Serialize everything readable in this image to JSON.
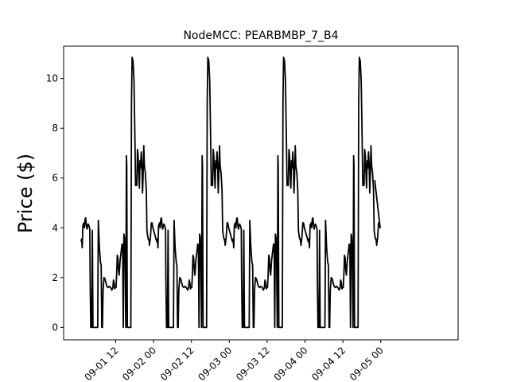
{
  "chart_data": {
    "type": "line",
    "title": "NodeMCC: PEARBMBP_7_B4",
    "xlabel": "",
    "ylabel": "Price ($)",
    "ylim": [
      -0.5,
      11.3
    ],
    "xlim": [
      -4.5,
      120.5
    ],
    "y_ticks": [
      0,
      2,
      4,
      6,
      8,
      10
    ],
    "x_ticks": [
      {
        "hour": 12,
        "label": "09-01 12"
      },
      {
        "hour": 24,
        "label": "09-02 00"
      },
      {
        "hour": 36,
        "label": "09-02 12"
      },
      {
        "hour": 48,
        "label": "09-03 00"
      },
      {
        "hour": 60,
        "label": "09-03 12"
      },
      {
        "hour": 72,
        "label": "09-04 00"
      },
      {
        "hour": 84,
        "label": "09-04 12"
      },
      {
        "hour": 96,
        "label": "09-05 00"
      }
    ],
    "line_color": "#000000",
    "series": [
      {
        "cycle_hours": 24,
        "start_hour": 1,
        "cycle": [
          [
            0.0,
            3.45
          ],
          [
            0.2,
            3.55
          ],
          [
            0.4,
            3.2
          ],
          [
            0.6,
            4.1
          ],
          [
            0.9,
            4.2
          ],
          [
            1.1,
            4.0
          ],
          [
            1.3,
            4.35
          ],
          [
            1.5,
            4.4
          ],
          [
            1.7,
            4.1
          ],
          [
            1.9,
            3.95
          ],
          [
            2.1,
            4.1
          ],
          [
            2.3,
            4.15
          ],
          [
            2.6,
            4.05
          ],
          [
            2.8,
            3.95
          ],
          [
            2.9,
            2.0
          ],
          [
            3.1,
            0.0
          ],
          [
            3.4,
            0.0
          ],
          [
            3.6,
            3.9
          ],
          [
            3.8,
            0.0
          ],
          [
            4.5,
            0.0
          ],
          [
            5.0,
            0.0
          ],
          [
            5.3,
            0.0
          ],
          [
            5.5,
            4.3
          ],
          [
            5.8,
            3.3
          ],
          [
            6.0,
            2.9
          ],
          [
            6.2,
            2.6
          ],
          [
            6.4,
            2.5
          ],
          [
            6.6,
            0.0
          ],
          [
            6.8,
            0.0
          ],
          [
            7.0,
            1.5
          ],
          [
            7.3,
            2.0
          ],
          [
            7.6,
            1.95
          ],
          [
            7.9,
            1.8
          ],
          [
            8.2,
            1.65
          ],
          [
            8.6,
            1.6
          ],
          [
            9.0,
            1.65
          ],
          [
            9.4,
            1.6
          ],
          [
            9.8,
            1.5
          ],
          [
            10.1,
            1.6
          ],
          [
            10.3,
            1.9
          ],
          [
            10.5,
            1.8
          ],
          [
            10.7,
            1.55
          ],
          [
            10.9,
            1.6
          ],
          [
            11.1,
            1.6
          ],
          [
            11.3,
            2.1
          ],
          [
            11.5,
            2.9
          ],
          [
            11.7,
            2.8
          ],
          [
            11.9,
            2.3
          ],
          [
            12.1,
            2.1
          ],
          [
            12.4,
            2.7
          ],
          [
            12.7,
            3.0
          ],
          [
            13.0,
            3.35
          ],
          [
            13.2,
            3.3
          ],
          [
            13.4,
            0.0
          ],
          [
            13.6,
            3.75
          ],
          [
            13.8,
            3.6
          ],
          [
            14.0,
            2.5
          ],
          [
            14.2,
            0.0
          ],
          [
            14.4,
            6.9
          ],
          [
            14.5,
            6.5
          ],
          [
            14.7,
            0.0
          ],
          [
            15.6,
            0.0
          ],
          [
            15.8,
            0.0
          ],
          [
            16.0,
            9.0
          ],
          [
            16.2,
            10.85
          ],
          [
            16.5,
            10.7
          ],
          [
            16.8,
            9.9
          ],
          [
            17.1,
            7.5
          ],
          [
            17.3,
            5.7
          ],
          [
            17.5,
            5.75
          ],
          [
            17.7,
            5.7
          ],
          [
            17.9,
            7.15
          ],
          [
            18.1,
            6.9
          ],
          [
            18.3,
            6.2
          ],
          [
            18.5,
            5.6
          ],
          [
            18.7,
            6.7
          ],
          [
            18.9,
            6.4
          ],
          [
            19.1,
            7.05
          ],
          [
            19.3,
            6.6
          ],
          [
            19.5,
            5.4
          ],
          [
            19.7,
            6.2
          ],
          [
            19.9,
            7.3
          ],
          [
            20.1,
            6.5
          ],
          [
            20.4,
            6.2
          ],
          [
            20.7,
            5.5
          ],
          [
            20.9,
            3.9
          ],
          [
            21.1,
            3.7
          ],
          [
            21.3,
            3.55
          ],
          [
            21.5,
            3.55
          ],
          [
            21.7,
            3.3
          ],
          [
            22.0,
            3.6
          ],
          [
            22.3,
            4.2
          ],
          [
            22.5,
            4.2
          ],
          [
            22.8,
            4.0
          ]
        ],
        "tail": [
          [
            21.1,
            5.9
          ],
          [
            21.4,
            5.5
          ]
        ]
      }
    ]
  }
}
